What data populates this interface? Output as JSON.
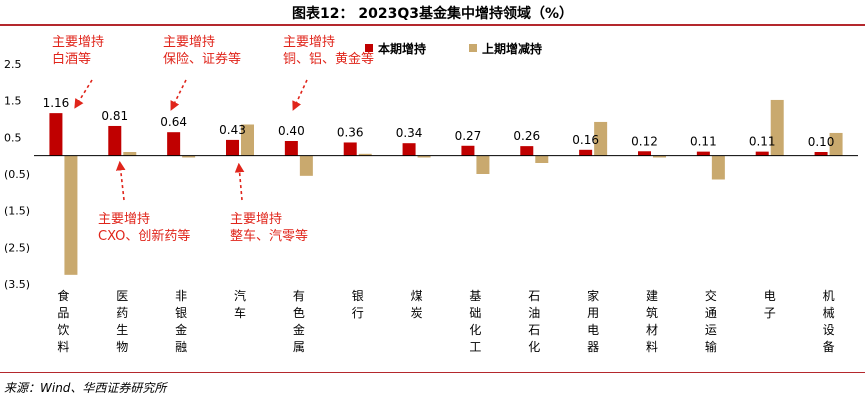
{
  "title": "图表12： 2023Q3基金集中增持领域（%）",
  "source": "来源：Wind、华西证券研究所",
  "colors": {
    "current": "#c00000",
    "previous": "#c9a96e",
    "annotation": "#e0251b",
    "accent": "#b4282d"
  },
  "chart_data": {
    "type": "bar",
    "categories": [
      "食品饮料",
      "医药生物",
      "非银金融",
      "汽车",
      "有色金属",
      "银行",
      "煤炭",
      "基础化工",
      "石油石化",
      "家用电器",
      "建筑材料",
      "交通运输",
      "电子",
      "机械设备"
    ],
    "series": [
      {
        "name": "本期增持",
        "values": [
          1.16,
          0.81,
          0.64,
          0.43,
          0.4,
          0.36,
          0.34,
          0.27,
          0.26,
          0.16,
          0.12,
          0.11,
          0.11,
          0.1
        ]
      },
      {
        "name": "上期增减持",
        "values": [
          -3.25,
          0.1,
          -0.05,
          0.85,
          -0.55,
          0.05,
          -0.05,
          -0.5,
          -0.2,
          0.92,
          -0.05,
          -0.65,
          1.52,
          0.62
        ]
      }
    ],
    "data_labels": [
      "1.16",
      "0.81",
      "0.64",
      "0.43",
      "0.40",
      "0.36",
      "0.34",
      "0.27",
      "0.26",
      "0.16",
      "0.12",
      "0.11",
      "0.11",
      "0.10"
    ],
    "yticks": [
      "2.5",
      "1.5",
      "0.5",
      "(0.5)",
      "(1.5)",
      "(2.5)",
      "(3.5)"
    ],
    "ytick_values": [
      2.5,
      1.5,
      0.5,
      -0.5,
      -1.5,
      -2.5,
      -3.5
    ],
    "ylim": [
      -3.5,
      2.5
    ],
    "legend": "top-right",
    "annotations": [
      {
        "category": "食品饮料",
        "lines": [
          "主要增持",
          "白酒等"
        ]
      },
      {
        "category": "非银金融",
        "lines": [
          "主要增持",
          "保险、证券等"
        ]
      },
      {
        "category": "有色金属",
        "lines": [
          "主要增持",
          "铜、铝、黄金等"
        ]
      },
      {
        "category": "医药生物",
        "lines": [
          "主要增持",
          "CXO、创新药等"
        ]
      },
      {
        "category": "汽车",
        "lines": [
          "主要增持",
          "整车、汽零等"
        ]
      }
    ]
  }
}
